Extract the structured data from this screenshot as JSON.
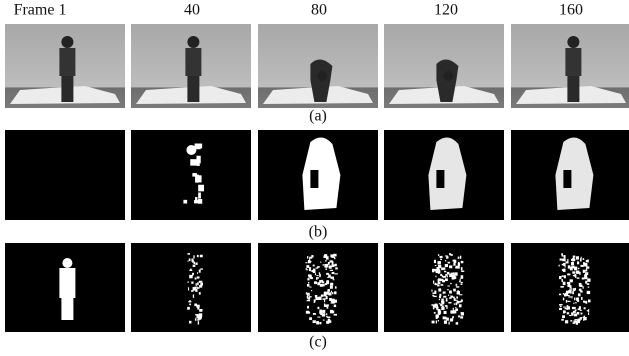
{
  "column_labels": [
    "Frame 1",
    "40",
    "80",
    "120",
    "160"
  ],
  "captions": [
    "(a)",
    "(b)",
    "(c)"
  ]
}
